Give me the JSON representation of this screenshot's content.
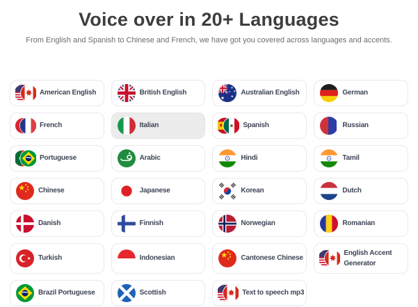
{
  "header": {
    "title": "Voice over in 20+ Languages",
    "subtitle": "From English and Spanish to Chinese and French, we have got you covered across languages and accents."
  },
  "languages": [
    {
      "label": "American English",
      "flag": "us-canada"
    },
    {
      "label": "British English",
      "flag": "uk"
    },
    {
      "label": "Australian English",
      "flag": "australia"
    },
    {
      "label": "German",
      "flag": "germany"
    },
    {
      "label": "French",
      "flag": "france"
    },
    {
      "label": "Italian",
      "flag": "italy",
      "highlighted": true
    },
    {
      "label": "Spanish",
      "flag": "spain-mexico"
    },
    {
      "label": "Russian",
      "flag": "russia"
    },
    {
      "label": "Portuguese",
      "flag": "portugal-brazil"
    },
    {
      "label": "Arabic",
      "flag": "arabic"
    },
    {
      "label": "Hindi",
      "flag": "india"
    },
    {
      "label": "Tamil",
      "flag": "india"
    },
    {
      "label": "Chinese",
      "flag": "china"
    },
    {
      "label": "Japanese",
      "flag": "japan"
    },
    {
      "label": "Korean",
      "flag": "korea"
    },
    {
      "label": "Dutch",
      "flag": "netherlands"
    },
    {
      "label": "Danish",
      "flag": "denmark"
    },
    {
      "label": "Finnish",
      "flag": "finland"
    },
    {
      "label": "Norwegian",
      "flag": "norway"
    },
    {
      "label": "Romanian",
      "flag": "romania"
    },
    {
      "label": "Turkish",
      "flag": "turkey"
    },
    {
      "label": "Indonesian",
      "flag": "indonesia"
    },
    {
      "label": "Cantonese Chinese",
      "flag": "china"
    },
    {
      "label": "English Accent Generator",
      "flag": "us-canada"
    },
    {
      "label": "Brazil Portuguese",
      "flag": "brazil"
    },
    {
      "label": "Scottish",
      "flag": "scotland"
    },
    {
      "label": "Text to speech mp3",
      "flag": "us-canada"
    }
  ],
  "colors": {
    "title_text": "#3d3d3d",
    "subtitle_text": "#6b6b6b",
    "label_text": "#3e4555",
    "card_border": "#e9e9ef",
    "card_background": "#ffffff",
    "highlighted_card_background": "#ececec"
  }
}
